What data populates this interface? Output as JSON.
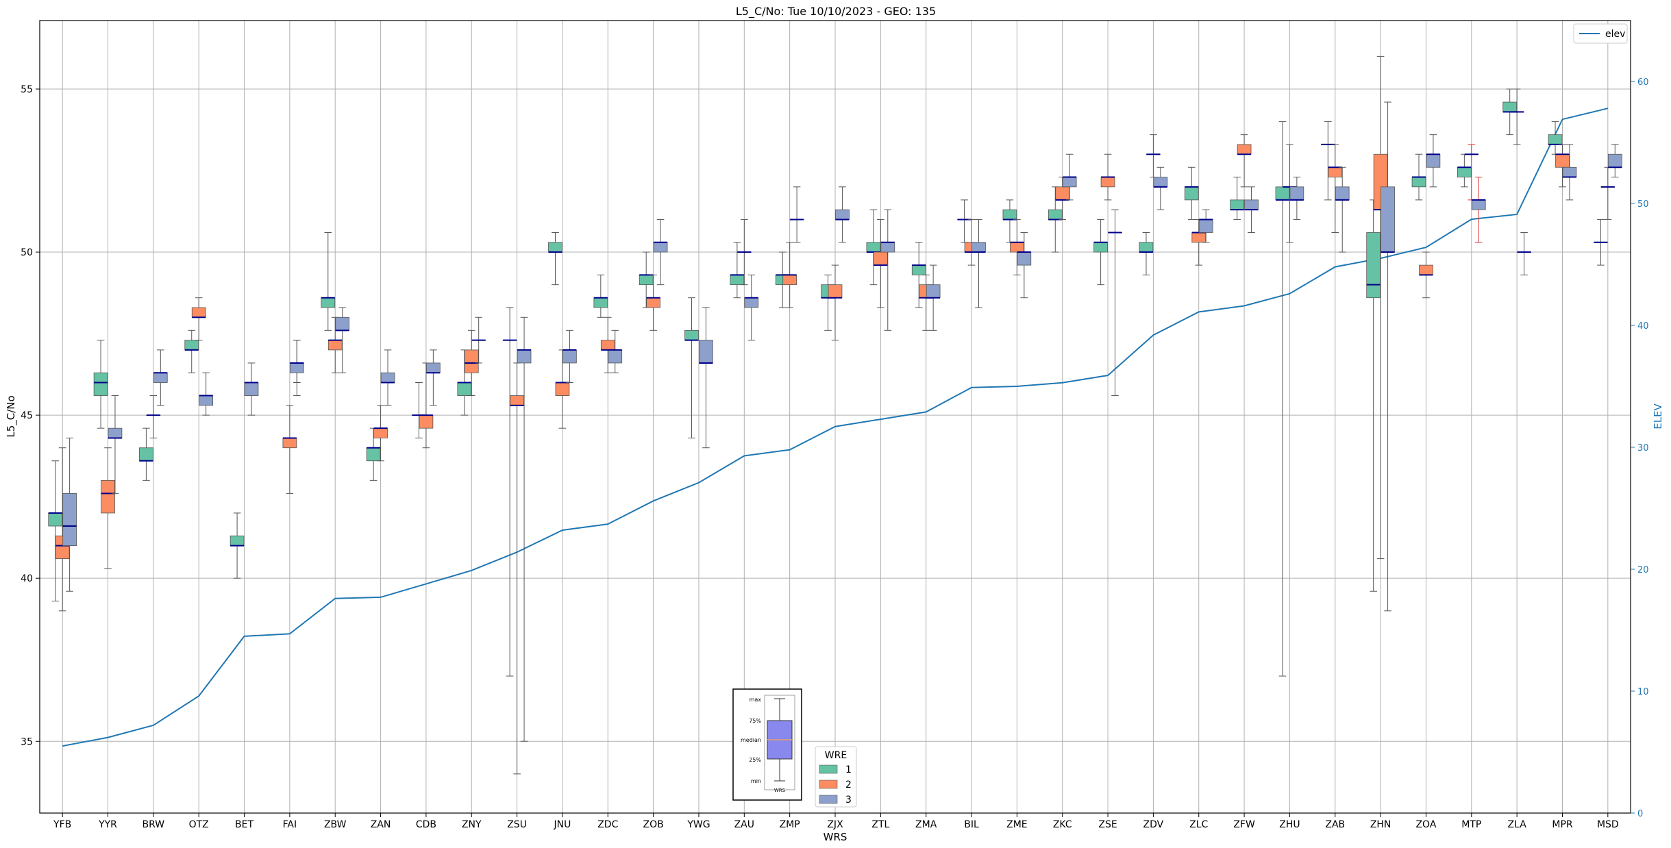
{
  "chart_data": {
    "type": "box",
    "title": "L5_C/No: Tue 10/10/2023 - GEO: 135",
    "xlabel": "WRS",
    "ylabel": "L5_C/No",
    "y2label": "ELEV",
    "ylim": [
      32.8,
      57.1
    ],
    "y2lim": [
      0,
      65
    ],
    "yticks": [
      35,
      40,
      45,
      50,
      55
    ],
    "y2ticks": [
      0,
      10,
      20,
      30,
      40,
      50,
      60
    ],
    "grid": true,
    "legend_top": {
      "entries": [
        "elev"
      ],
      "placement": "top-right"
    },
    "legend_wre": {
      "title": "WRE",
      "entries": [
        "1",
        "2",
        "3"
      ],
      "placement": "bottom-center"
    },
    "colors": {
      "wre1": "#66c2a5",
      "wre2": "#fc8d62",
      "wre3": "#8da0cb",
      "elev": "#1f77b4",
      "median": "#00008b",
      "whisker": "#555555",
      "red_whisker": "#e03030",
      "y2axis": "#1f77b4"
    },
    "inset": {
      "labels": [
        "max",
        "75%",
        "median",
        "25%",
        "min"
      ],
      "xlabel": "WRS",
      "fill": "#8888ee",
      "median_color": "#e8a060"
    },
    "categories": [
      "YFB",
      "YYR",
      "BRW",
      "OTZ",
      "BET",
      "FAI",
      "ZBW",
      "ZAN",
      "CDB",
      "ZNY",
      "ZSU",
      "JNU",
      "ZDC",
      "ZOB",
      "YWG",
      "ZAU",
      "ZMP",
      "ZJX",
      "ZTL",
      "ZMA",
      "BIL",
      "ZME",
      "ZKC",
      "ZSE",
      "ZDV",
      "ZLC",
      "ZFW",
      "ZHU",
      "ZAB",
      "ZHN",
      "ZOA",
      "MTP",
      "ZLA",
      "MPR",
      "MSD"
    ],
    "elev": [
      5.5,
      6.2,
      7.2,
      9.6,
      14.5,
      14.7,
      17.6,
      17.7,
      18.8,
      19.9,
      21.4,
      23.2,
      23.7,
      25.6,
      27.1,
      29.3,
      29.8,
      31.7,
      32.3,
      32.9,
      34.9,
      35.0,
      35.3,
      35.9,
      39.2,
      41.1,
      41.6,
      42.6,
      44.8,
      45.5,
      46.4,
      48.7,
      49.1,
      56.9,
      57.8
    ],
    "boxes": [
      {
        "wrs": "YFB",
        "wre": 1,
        "min": 39.3,
        "q1": 41.6,
        "median": 42.0,
        "q3": 42.0,
        "max": 43.6
      },
      {
        "wrs": "YFB",
        "wre": 2,
        "min": 39.0,
        "q1": 40.6,
        "median": 41.0,
        "q3": 41.3,
        "max": 44.0
      },
      {
        "wrs": "YFB",
        "wre": 3,
        "min": 39.6,
        "q1": 41.0,
        "median": 41.6,
        "q3": 42.6,
        "max": 44.3
      },
      {
        "wrs": "YYR",
        "wre": 1,
        "min": 44.6,
        "q1": 45.6,
        "median": 46.0,
        "q3": 46.3,
        "max": 47.3
      },
      {
        "wrs": "YYR",
        "wre": 2,
        "min": 40.3,
        "q1": 42.0,
        "median": 42.6,
        "q3": 43.0,
        "max": 44.0
      },
      {
        "wrs": "YYR",
        "wre": 3,
        "min": 42.6,
        "q1": 44.3,
        "median": 44.3,
        "q3": 44.6,
        "max": 45.6
      },
      {
        "wrs": "BRW",
        "wre": 1,
        "min": 43.0,
        "q1": 43.6,
        "median": 43.6,
        "q3": 44.0,
        "max": 44.6
      },
      {
        "wrs": "BRW",
        "wre": 2,
        "min": 44.3,
        "q1": 45.0,
        "median": 45.0,
        "q3": 45.0,
        "max": 45.6
      },
      {
        "wrs": "BRW",
        "wre": 3,
        "min": 45.3,
        "q1": 46.0,
        "median": 46.3,
        "q3": 46.3,
        "max": 47.0
      },
      {
        "wrs": "OTZ",
        "wre": 1,
        "min": 46.3,
        "q1": 47.0,
        "median": 47.0,
        "q3": 47.3,
        "max": 47.6
      },
      {
        "wrs": "OTZ",
        "wre": 2,
        "min": 47.3,
        "q1": 48.0,
        "median": 48.0,
        "q3": 48.3,
        "max": 48.6
      },
      {
        "wrs": "OTZ",
        "wre": 3,
        "min": 45.0,
        "q1": 45.3,
        "median": 45.6,
        "q3": 45.6,
        "max": 46.3
      },
      {
        "wrs": "BET",
        "wre": 1,
        "min": 40.0,
        "q1": 41.0,
        "median": 41.0,
        "q3": 41.3,
        "max": 42.0
      },
      {
        "wrs": "BET",
        "wre": 3,
        "min": 45.0,
        "q1": 45.6,
        "median": 46.0,
        "q3": 46.0,
        "max": 46.6
      },
      {
        "wrs": "FAI",
        "wre": 2,
        "min": 42.6,
        "q1": 44.0,
        "median": 44.3,
        "q3": 44.3,
        "max": 45.3
      },
      {
        "wrs": "FAI",
        "wre": 3,
        "min": 46.0,
        "q1": 46.6,
        "median": 46.6,
        "q3": 46.6,
        "max": 47.3
      },
      {
        "wrs": "FAI",
        "wre": 3,
        "min": 45.6,
        "q1": 46.3,
        "median": 46.6,
        "q3": 46.6,
        "max": 47.3
      },
      {
        "wrs": "ZBW",
        "wre": 1,
        "min": 47.6,
        "q1": 48.3,
        "median": 48.6,
        "q3": 48.6,
        "max": 50.6
      },
      {
        "wrs": "ZBW",
        "wre": 2,
        "min": 46.3,
        "q1": 47.0,
        "median": 47.3,
        "q3": 47.3,
        "max": 48.0
      },
      {
        "wrs": "ZBW",
        "wre": 3,
        "min": 46.3,
        "q1": 47.6,
        "median": 47.6,
        "q3": 48.0,
        "max": 48.3
      },
      {
        "wrs": "ZAN",
        "wre": 1,
        "min": 43.0,
        "q1": 43.6,
        "median": 44.0,
        "q3": 44.0,
        "max": 44.6
      },
      {
        "wrs": "ZAN",
        "wre": 2,
        "min": 43.6,
        "q1": 44.3,
        "median": 44.6,
        "q3": 44.6,
        "max": 45.3
      },
      {
        "wrs": "ZAN",
        "wre": 3,
        "min": 45.3,
        "q1": 46.0,
        "median": 46.0,
        "q3": 46.3,
        "max": 47.0
      },
      {
        "wrs": "CDB",
        "wre": 1,
        "min": 44.3,
        "q1": 45.0,
        "median": 45.0,
        "q3": 45.0,
        "max": 46.0
      },
      {
        "wrs": "CDB",
        "wre": 2,
        "min": 44.0,
        "q1": 44.6,
        "median": 45.0,
        "q3": 45.0,
        "max": 46.6
      },
      {
        "wrs": "CDB",
        "wre": 3,
        "min": 45.3,
        "q1": 46.3,
        "median": 46.3,
        "q3": 46.6,
        "max": 47.0
      },
      {
        "wrs": "ZNY",
        "wre": 1,
        "min": 45.0,
        "q1": 45.6,
        "median": 46.0,
        "q3": 46.0,
        "max": 47.0
      },
      {
        "wrs": "ZNY",
        "wre": 2,
        "min": 45.6,
        "q1": 46.3,
        "median": 46.6,
        "q3": 47.0,
        "max": 47.6
      },
      {
        "wrs": "ZNY",
        "wre": 3,
        "min": 46.6,
        "q1": 47.3,
        "median": 47.3,
        "q3": 47.3,
        "max": 48.0
      },
      {
        "wrs": "ZSU",
        "wre": 1,
        "min": 37.0,
        "q1": 47.3,
        "median": 47.3,
        "q3": 47.3,
        "max": 48.3
      },
      {
        "wrs": "ZSU",
        "wre": 2,
        "min": 34.0,
        "q1": 45.3,
        "median": 45.3,
        "q3": 45.6,
        "max": 46.6
      },
      {
        "wrs": "ZSU",
        "wre": 3,
        "min": 35.0,
        "q1": 46.6,
        "median": 47.0,
        "q3": 47.0,
        "max": 48.0
      },
      {
        "wrs": "JNU",
        "wre": 1,
        "min": 49.0,
        "q1": 50.0,
        "median": 50.0,
        "q3": 50.3,
        "max": 50.6
      },
      {
        "wrs": "JNU",
        "wre": 2,
        "min": 44.6,
        "q1": 45.6,
        "median": 46.0,
        "q3": 46.0,
        "max": 47.0
      },
      {
        "wrs": "JNU",
        "wre": 3,
        "min": 46.0,
        "q1": 46.6,
        "median": 47.0,
        "q3": 47.0,
        "max": 47.6
      },
      {
        "wrs": "ZDC",
        "wre": 1,
        "min": 48.0,
        "q1": 48.3,
        "median": 48.6,
        "q3": 48.6,
        "max": 49.3
      },
      {
        "wrs": "ZDC",
        "wre": 2,
        "min": 46.3,
        "q1": 47.0,
        "median": 47.0,
        "q3": 47.3,
        "max": 48.0
      },
      {
        "wrs": "ZDC",
        "wre": 3,
        "min": 46.3,
        "q1": 46.6,
        "median": 47.0,
        "q3": 47.0,
        "max": 47.6
      },
      {
        "wrs": "ZOB",
        "wre": 1,
        "min": 48.3,
        "q1": 49.0,
        "median": 49.3,
        "q3": 49.3,
        "max": 50.0
      },
      {
        "wrs": "ZOB",
        "wre": 2,
        "min": 47.6,
        "q1": 48.3,
        "median": 48.6,
        "q3": 48.6,
        "max": 49.3
      },
      {
        "wrs": "ZOB",
        "wre": 3,
        "min": 49.0,
        "q1": 50.0,
        "median": 50.3,
        "q3": 50.3,
        "max": 51.0
      },
      {
        "wrs": "YWG",
        "wre": 1,
        "min": 44.3,
        "q1": 47.3,
        "median": 47.3,
        "q3": 47.6,
        "max": 48.6
      },
      {
        "wrs": "YWG",
        "wre": 3,
        "min": 44.0,
        "q1": 46.6,
        "median": 46.6,
        "q3": 47.3,
        "max": 48.3
      },
      {
        "wrs": "ZAU",
        "wre": 1,
        "min": 48.6,
        "q1": 49.0,
        "median": 49.3,
        "q3": 49.3,
        "max": 50.3
      },
      {
        "wrs": "ZAU",
        "wre": 2,
        "min": 49.0,
        "q1": 50.0,
        "median": 50.0,
        "q3": 50.0,
        "max": 51.0
      },
      {
        "wrs": "ZAU",
        "wre": 3,
        "min": 47.3,
        "q1": 48.3,
        "median": 48.6,
        "q3": 48.6,
        "max": 49.3
      },
      {
        "wrs": "ZMP",
        "wre": 1,
        "min": 48.3,
        "q1": 49.0,
        "median": 49.3,
        "q3": 49.3,
        "max": 50.0
      },
      {
        "wrs": "ZMP",
        "wre": 2,
        "min": 48.3,
        "q1": 49.0,
        "median": 49.3,
        "q3": 49.3,
        "max": 50.3
      },
      {
        "wrs": "ZMP",
        "wre": 3,
        "min": 50.3,
        "q1": 51.0,
        "median": 51.0,
        "q3": 51.0,
        "max": 52.0
      },
      {
        "wrs": "ZJX",
        "wre": 1,
        "min": 47.6,
        "q1": 48.6,
        "median": 48.6,
        "q3": 49.0,
        "max": 49.3
      },
      {
        "wrs": "ZJX",
        "wre": 2,
        "min": 47.3,
        "q1": 48.6,
        "median": 48.6,
        "q3": 49.0,
        "max": 49.6
      },
      {
        "wrs": "ZJX",
        "wre": 3,
        "min": 50.3,
        "q1": 51.0,
        "median": 51.0,
        "q3": 51.3,
        "max": 52.0
      },
      {
        "wrs": "ZTL",
        "wre": 1,
        "min": 49.0,
        "q1": 50.0,
        "median": 50.0,
        "q3": 50.3,
        "max": 51.3
      },
      {
        "wrs": "ZTL",
        "wre": 2,
        "min": 48.3,
        "q1": 49.6,
        "median": 49.6,
        "q3": 50.0,
        "max": 51.0
      },
      {
        "wrs": "ZTL",
        "wre": 3,
        "min": 47.6,
        "q1": 50.0,
        "median": 50.3,
        "q3": 50.3,
        "max": 51.3
      },
      {
        "wrs": "ZMA",
        "wre": 1,
        "min": 48.3,
        "q1": 49.3,
        "median": 49.6,
        "q3": 49.6,
        "max": 50.3
      },
      {
        "wrs": "ZMA",
        "wre": 2,
        "min": 47.6,
        "q1": 48.6,
        "median": 48.6,
        "q3": 49.0,
        "max": 49.3
      },
      {
        "wrs": "ZMA",
        "wre": 3,
        "min": 47.6,
        "q1": 48.6,
        "median": 48.6,
        "q3": 49.0,
        "max": 49.6
      },
      {
        "wrs": "BIL",
        "wre": 1,
        "min": 50.3,
        "q1": 51.0,
        "median": 51.0,
        "q3": 51.0,
        "max": 51.6
      },
      {
        "wrs": "BIL",
        "wre": 2,
        "min": 49.6,
        "q1": 50.0,
        "median": 50.0,
        "q3": 50.3,
        "max": 51.0
      },
      {
        "wrs": "BIL",
        "wre": 3,
        "min": 48.3,
        "q1": 50.0,
        "median": 50.0,
        "q3": 50.3,
        "max": 51.0
      },
      {
        "wrs": "ZME",
        "wre": 1,
        "min": 50.3,
        "q1": 51.0,
        "median": 51.0,
        "q3": 51.3,
        "max": 51.6
      },
      {
        "wrs": "ZME",
        "wre": 2,
        "min": 49.3,
        "q1": 50.0,
        "median": 50.3,
        "q3": 50.3,
        "max": 51.0
      },
      {
        "wrs": "ZME",
        "wre": 3,
        "min": 48.6,
        "q1": 49.6,
        "median": 50.0,
        "q3": 50.0,
        "max": 50.6
      },
      {
        "wrs": "ZKC",
        "wre": 1,
        "min": 50.0,
        "q1": 51.0,
        "median": 51.0,
        "q3": 51.3,
        "max": 52.0
      },
      {
        "wrs": "ZKC",
        "wre": 2,
        "min": 51.0,
        "q1": 51.6,
        "median": 51.6,
        "q3": 52.0,
        "max": 52.3
      },
      {
        "wrs": "ZKC",
        "wre": 3,
        "min": 51.6,
        "q1": 52.0,
        "median": 52.3,
        "q3": 52.3,
        "max": 53.0
      },
      {
        "wrs": "ZSE",
        "wre": 1,
        "min": 49.0,
        "q1": 50.0,
        "median": 50.3,
        "q3": 50.3,
        "max": 51.0
      },
      {
        "wrs": "ZSE",
        "wre": 2,
        "min": 51.6,
        "q1": 52.0,
        "median": 52.3,
        "q3": 52.3,
        "max": 53.0
      },
      {
        "wrs": "ZSE",
        "wre": 3,
        "min": 45.6,
        "q1": 50.6,
        "median": 50.6,
        "q3": 50.6,
        "max": 51.3
      },
      {
        "wrs": "ZDV",
        "wre": 1,
        "min": 49.3,
        "q1": 50.0,
        "median": 50.0,
        "q3": 50.3,
        "max": 50.6
      },
      {
        "wrs": "ZDV",
        "wre": 2,
        "min": 52.3,
        "q1": 53.0,
        "median": 53.0,
        "q3": 53.0,
        "max": 53.6
      },
      {
        "wrs": "ZDV",
        "wre": 3,
        "min": 51.3,
        "q1": 52.0,
        "median": 52.0,
        "q3": 52.3,
        "max": 52.6
      },
      {
        "wrs": "ZLC",
        "wre": 1,
        "min": 51.0,
        "q1": 51.6,
        "median": 52.0,
        "q3": 52.0,
        "max": 52.6
      },
      {
        "wrs": "ZLC",
        "wre": 2,
        "min": 49.6,
        "q1": 50.3,
        "median": 50.6,
        "q3": 50.6,
        "max": 51.0
      },
      {
        "wrs": "ZLC",
        "wre": 3,
        "min": 50.3,
        "q1": 50.6,
        "median": 51.0,
        "q3": 51.0,
        "max": 51.3
      },
      {
        "wrs": "ZFW",
        "wre": 1,
        "min": 51.0,
        "q1": 51.3,
        "median": 51.3,
        "q3": 51.6,
        "max": 52.3
      },
      {
        "wrs": "ZFW",
        "wre": 2,
        "min": 52.0,
        "q1": 53.0,
        "median": 53.0,
        "q3": 53.3,
        "max": 53.6
      },
      {
        "wrs": "ZFW",
        "wre": 3,
        "min": 50.6,
        "q1": 51.3,
        "median": 51.3,
        "q3": 51.6,
        "max": 52.0
      },
      {
        "wrs": "ZHU",
        "wre": 1,
        "min": 37.0,
        "q1": 51.6,
        "median": 51.6,
        "q3": 52.0,
        "max": 54.0
      },
      {
        "wrs": "ZHU",
        "wre": 2,
        "min": 50.3,
        "q1": 52.0,
        "median": 52.0,
        "q3": 52.0,
        "max": 53.3
      },
      {
        "wrs": "ZHU",
        "wre": 3,
        "min": 51.0,
        "q1": 51.6,
        "median": 51.6,
        "q3": 52.0,
        "max": 52.3
      },
      {
        "wrs": "ZAB",
        "wre": 1,
        "min": 51.6,
        "q1": 53.3,
        "median": 53.3,
        "q3": 53.3,
        "max": 54.0
      },
      {
        "wrs": "ZAB",
        "wre": 2,
        "min": 50.6,
        "q1": 52.3,
        "median": 52.6,
        "q3": 52.6,
        "max": 53.3
      },
      {
        "wrs": "ZAB",
        "wre": 3,
        "min": 50.0,
        "q1": 51.6,
        "median": 51.6,
        "q3": 52.0,
        "max": 52.6
      },
      {
        "wrs": "ZHN",
        "wre": 1,
        "min": 39.6,
        "q1": 48.6,
        "median": 49.0,
        "q3": 50.6,
        "max": 51.6
      },
      {
        "wrs": "ZHN",
        "wre": 2,
        "min": 40.6,
        "q1": 51.3,
        "median": 51.3,
        "q3": 53.0,
        "max": 56.0
      },
      {
        "wrs": "ZHN",
        "wre": 3,
        "min": 39.0,
        "q1": 50.0,
        "median": 50.0,
        "q3": 52.0,
        "max": 54.6
      },
      {
        "wrs": "ZOA",
        "wre": 1,
        "min": 51.6,
        "q1": 52.0,
        "median": 52.3,
        "q3": 52.3,
        "max": 53.0
      },
      {
        "wrs": "ZOA",
        "wre": 2,
        "min": 48.6,
        "q1": 49.3,
        "median": 49.3,
        "q3": 49.6,
        "max": 50.0
      },
      {
        "wrs": "ZOA",
        "wre": 3,
        "min": 52.0,
        "q1": 52.6,
        "median": 53.0,
        "q3": 53.0,
        "max": 53.6
      },
      {
        "wrs": "MTP",
        "wre": 1,
        "min": 52.0,
        "q1": 52.3,
        "median": 52.6,
        "q3": 52.6,
        "max": 53.0
      },
      {
        "wrs": "MTP",
        "wre": 2,
        "min": 51.6,
        "q1": 53.0,
        "median": 53.0,
        "q3": 53.0,
        "max": 53.3,
        "whisker_color": "red"
      },
      {
        "wrs": "MTP",
        "wre": 3,
        "min": 50.3,
        "q1": 51.3,
        "median": 51.6,
        "q3": 51.6,
        "max": 52.3,
        "whisker_color": "red"
      },
      {
        "wrs": "ZLA",
        "wre": 1,
        "min": 53.6,
        "q1": 54.3,
        "median": 54.3,
        "q3": 54.6,
        "max": 55.0
      },
      {
        "wrs": "ZLA",
        "wre": 2,
        "min": 53.3,
        "q1": 54.3,
        "median": 54.3,
        "q3": 54.3,
        "max": 55.0
      },
      {
        "wrs": "ZLA",
        "wre": 3,
        "min": 49.3,
        "q1": 50.0,
        "median": 50.0,
        "q3": 50.0,
        "max": 50.6
      },
      {
        "wrs": "MPR",
        "wre": 1,
        "min": 53.0,
        "q1": 53.3,
        "median": 53.3,
        "q3": 53.6,
        "max": 54.0
      },
      {
        "wrs": "MPR",
        "wre": 2,
        "min": 52.0,
        "q1": 52.6,
        "median": 53.0,
        "q3": 53.0,
        "max": 53.3
      },
      {
        "wrs": "MPR",
        "wre": 3,
        "min": 51.6,
        "q1": 52.3,
        "median": 52.3,
        "q3": 52.6,
        "max": 53.3
      },
      {
        "wrs": "MSD",
        "wre": 1,
        "min": 49.6,
        "q1": 50.3,
        "median": 50.3,
        "q3": 50.3,
        "max": 51.0
      },
      {
        "wrs": "MSD",
        "wre": 2,
        "min": 51.0,
        "q1": 52.0,
        "median": 52.0,
        "q3": 52.0,
        "max": 52.6
      },
      {
        "wrs": "MSD",
        "wre": 3,
        "min": 52.3,
        "q1": 52.6,
        "median": 52.6,
        "q3": 53.0,
        "max": 53.3
      }
    ]
  }
}
